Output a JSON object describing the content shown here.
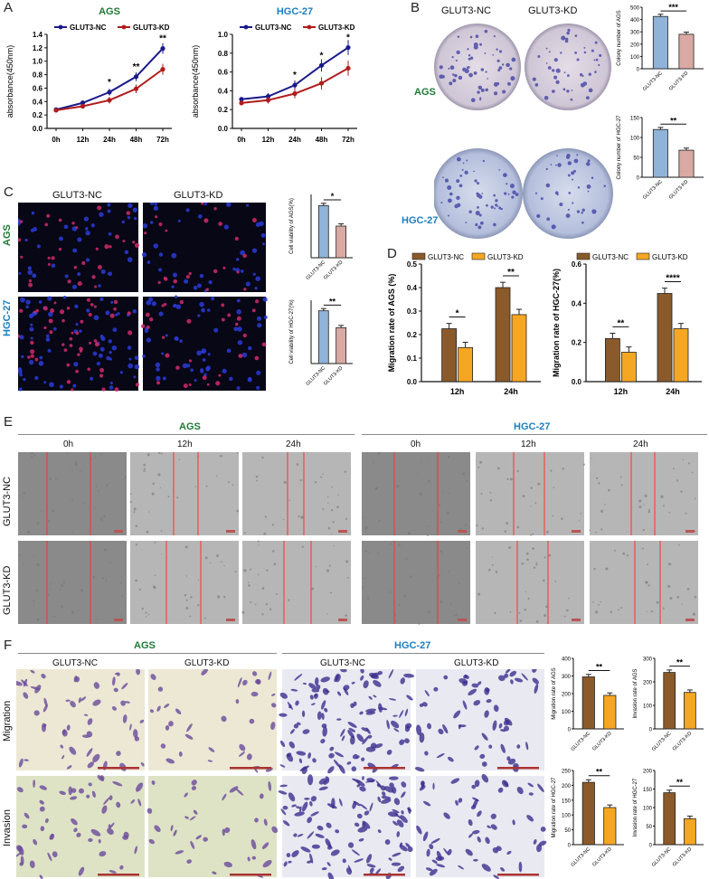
{
  "panels": {
    "A": "A",
    "B": "B",
    "C": "C",
    "D": "D",
    "E": "E",
    "F": "F"
  },
  "labels": {
    "ags": "AGS",
    "hgc": "HGC-27",
    "nc": "GLUT3-NC",
    "kd": "GLUT3-KD",
    "t0": "0h",
    "t12": "12h",
    "t24": "24h",
    "migration": "Migration",
    "invasion": "Invasion"
  },
  "colors": {
    "nc_line": "#1a1a8c",
    "kd_line": "#b01c1c",
    "brown": "#8b5a2b",
    "orange": "#f5a623",
    "blue_bar": "#8fb3d9",
    "pink_bar": "#d9aaa4",
    "red_scratch": "#ff3030"
  },
  "chart_data": [
    {
      "id": "A1",
      "type": "line",
      "title": "AGS",
      "ylabel": "absorbance(450nm)",
      "categories": [
        "0h",
        "12h",
        "24h",
        "48h",
        "72h"
      ],
      "ylim": [
        0,
        1.4
      ],
      "yticks": [
        "0.0",
        "0.2",
        "0.4",
        "0.6",
        "0.8",
        "1.0",
        "1.2",
        "1.4"
      ],
      "series": [
        {
          "name": "GLUT3-NC",
          "values": [
            0.28,
            0.38,
            0.54,
            0.77,
            1.19
          ]
        },
        {
          "name": "GLUT3-KD",
          "values": [
            0.27,
            0.33,
            0.42,
            0.59,
            0.88
          ]
        }
      ],
      "sig": [
        "",
        "",
        "*",
        "**",
        "**"
      ]
    },
    {
      "id": "A2",
      "type": "line",
      "title": "HGC-27",
      "ylabel": "absorbance(450nm)",
      "categories": [
        "0h",
        "12h",
        "24h",
        "48h",
        "72h"
      ],
      "ylim": [
        0,
        1.0
      ],
      "yticks": [
        "0.0",
        "0.2",
        "0.4",
        "0.6",
        "0.8",
        "1.0"
      ],
      "series": [
        {
          "name": "GLUT3-NC",
          "values": [
            0.31,
            0.34,
            0.46,
            0.67,
            0.86
          ]
        },
        {
          "name": "GLUT3-KD",
          "values": [
            0.27,
            0.3,
            0.37,
            0.48,
            0.64
          ]
        }
      ],
      "sig": [
        "",
        "",
        "*",
        "*",
        "*"
      ]
    },
    {
      "id": "B1",
      "type": "bar",
      "ylabel": "Colony number of AGS",
      "categories": [
        "GLUT3-NC",
        "GLUT3-KD"
      ],
      "values": [
        425,
        280
      ],
      "ylim": [
        0,
        500
      ],
      "yticks": [
        "0",
        "100",
        "200",
        "300",
        "400",
        "500"
      ],
      "sig": "***"
    },
    {
      "id": "B2",
      "type": "bar",
      "ylabel": "Colony number of HGC-27",
      "categories": [
        "GLUT3-NC",
        "GLUT3-KD"
      ],
      "values": [
        120,
        68
      ],
      "ylim": [
        0,
        150
      ],
      "yticks": [
        "0",
        "50",
        "100",
        "150"
      ],
      "sig": "**"
    },
    {
      "id": "C1",
      "type": "bar",
      "ylabel": "Cell viability of AGS(%)",
      "categories": [
        "GLUT3-NC",
        "GLUT3-KD"
      ],
      "values": [
        0.33,
        0.2
      ],
      "ylim": [
        0,
        0.4
      ],
      "yticks": [],
      "sig": "*"
    },
    {
      "id": "C2",
      "type": "bar",
      "ylabel": "Cell viability of HGC-27(%)",
      "categories": [
        "GLUT3-NC",
        "GLUT3-KD"
      ],
      "values": [
        0.5,
        0.34
      ],
      "ylim": [
        0,
        0.6
      ],
      "yticks": [],
      "sig": "**"
    },
    {
      "id": "D1",
      "type": "bar",
      "ylabel": "Migration rate of AGS (%)",
      "categories": [
        "12h",
        "24h"
      ],
      "ylim": [
        0,
        0.5
      ],
      "yticks": [
        "0.0",
        "0.1",
        "0.2",
        "0.3",
        "0.4",
        "0.5"
      ],
      "series": [
        {
          "name": "GLUT3-NC",
          "values": [
            0.225,
            0.4
          ]
        },
        {
          "name": "GLUT3-KD",
          "values": [
            0.145,
            0.285
          ]
        }
      ],
      "sig": [
        "*",
        "**"
      ]
    },
    {
      "id": "D2",
      "type": "bar",
      "ylabel": "Migration rate of HGC-27(%)",
      "categories": [
        "12h",
        "24h"
      ],
      "ylim": [
        0,
        0.6
      ],
      "yticks": [
        "0.0",
        "0.2",
        "0.4",
        "0.6"
      ],
      "series": [
        {
          "name": "GLUT3-NC",
          "values": [
            0.22,
            0.45
          ]
        },
        {
          "name": "GLUT3-KD",
          "values": [
            0.15,
            0.27
          ]
        }
      ],
      "sig": [
        "**",
        "****"
      ]
    },
    {
      "id": "F1",
      "type": "bar",
      "ylabel": "Migration rate of AGS",
      "categories": [
        "GLUT3-NC",
        "GLUT3-KD"
      ],
      "values": [
        295,
        190
      ],
      "ylim": [
        0,
        400
      ],
      "yticks": [
        "0",
        "100",
        "200",
        "300",
        "400"
      ],
      "sig": "**"
    },
    {
      "id": "F2",
      "type": "bar",
      "ylabel": "Invasion rate of AGS",
      "categories": [
        "GLUT3-NC",
        "GLUT3-KD"
      ],
      "values": [
        240,
        155
      ],
      "ylim": [
        0,
        300
      ],
      "yticks": [
        "0",
        "100",
        "200",
        "300"
      ],
      "sig": "**"
    },
    {
      "id": "F3",
      "type": "bar",
      "ylabel": "Migration rate of HGC-27",
      "categories": [
        "GLUT3-NC",
        "GLUT3-KD"
      ],
      "values": [
        210,
        125
      ],
      "ylim": [
        0,
        250
      ],
      "yticks": [
        "0",
        "50",
        "100",
        "150",
        "200",
        "250"
      ],
      "sig": "**"
    },
    {
      "id": "F4",
      "type": "bar",
      "ylabel": "Invasion rate of HGC-27",
      "categories": [
        "GLUT3-NC",
        "GLUT3-KD"
      ],
      "values": [
        140,
        70
      ],
      "ylim": [
        0,
        200
      ],
      "yticks": [
        "0",
        "50",
        "100",
        "150",
        "200"
      ],
      "sig": "**"
    }
  ]
}
